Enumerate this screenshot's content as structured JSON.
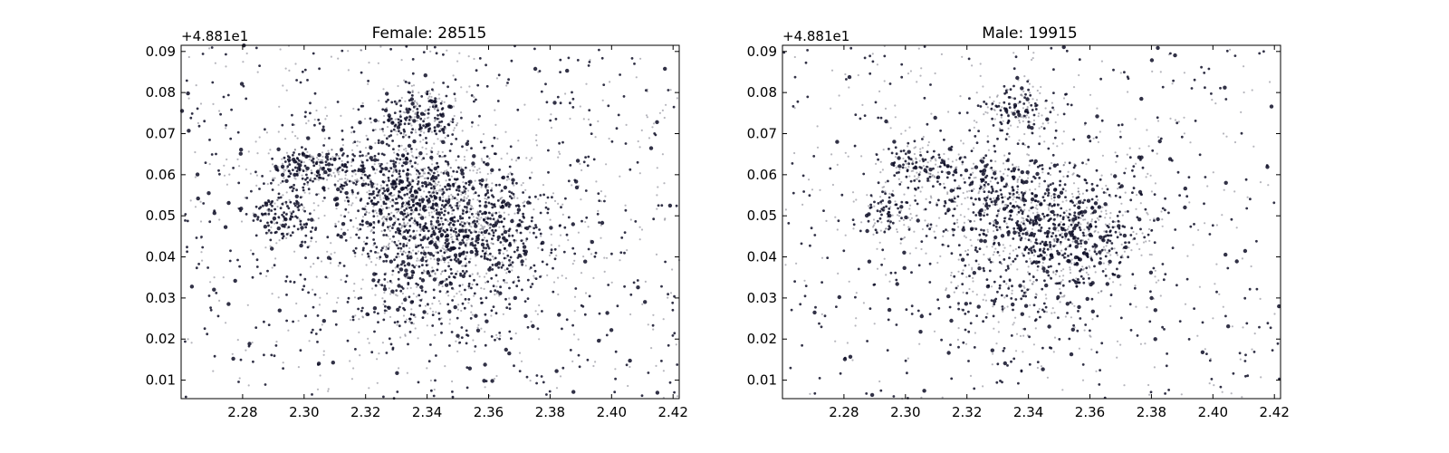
{
  "chart_data": [
    {
      "type": "scatter",
      "title": "Female: 28515",
      "y_offset_label": "+4.881e1",
      "xlim": [
        2.26,
        2.422
      ],
      "ylim": [
        0.0055,
        0.0915
      ],
      "xticks": [
        "2.28",
        "2.30",
        "2.32",
        "2.34",
        "2.36",
        "2.38",
        "2.40",
        "2.42"
      ],
      "yticks": [
        "0.01",
        "0.02",
        "0.03",
        "0.04",
        "0.05",
        "0.06",
        "0.07",
        "0.08",
        "0.09"
      ],
      "count": 28515,
      "point_color": "#0d0d26",
      "clusters": [
        {
          "x": 2.33,
          "y": 0.057,
          "sx": 0.012,
          "sy": 0.006,
          "w": 0.16
        },
        {
          "x": 2.345,
          "y": 0.05,
          "sx": 0.014,
          "sy": 0.008,
          "w": 0.18
        },
        {
          "x": 2.338,
          "y": 0.075,
          "sx": 0.007,
          "sy": 0.004,
          "w": 0.06
        },
        {
          "x": 2.302,
          "y": 0.061,
          "sx": 0.007,
          "sy": 0.003,
          "w": 0.06
        },
        {
          "x": 2.293,
          "y": 0.05,
          "sx": 0.005,
          "sy": 0.003,
          "w": 0.04
        },
        {
          "x": 2.36,
          "y": 0.046,
          "sx": 0.01,
          "sy": 0.006,
          "w": 0.08
        },
        {
          "x": 2.34,
          "y": 0.035,
          "sx": 0.015,
          "sy": 0.01,
          "w": 0.1
        },
        {
          "x": 2.34,
          "y": 0.048,
          "sx": 0.04,
          "sy": 0.02,
          "w": 0.18
        }
      ]
    },
    {
      "type": "scatter",
      "title": "Male: 19915",
      "y_offset_label": "+4.881e1",
      "xlim": [
        2.26,
        2.422
      ],
      "ylim": [
        0.0055,
        0.0915
      ],
      "xticks": [
        "2.28",
        "2.30",
        "2.32",
        "2.34",
        "2.36",
        "2.38",
        "2.40",
        "2.42"
      ],
      "yticks": [
        "0.01",
        "0.02",
        "0.03",
        "0.04",
        "0.05",
        "0.06",
        "0.07",
        "0.08",
        "0.09"
      ],
      "count": 19915,
      "point_color": "#0d0d26",
      "clusters": [
        {
          "x": 2.33,
          "y": 0.055,
          "sx": 0.012,
          "sy": 0.006,
          "w": 0.14
        },
        {
          "x": 2.348,
          "y": 0.048,
          "sx": 0.013,
          "sy": 0.007,
          "w": 0.16
        },
        {
          "x": 2.336,
          "y": 0.076,
          "sx": 0.006,
          "sy": 0.003,
          "w": 0.06
        },
        {
          "x": 2.303,
          "y": 0.062,
          "sx": 0.007,
          "sy": 0.003,
          "w": 0.06
        },
        {
          "x": 2.294,
          "y": 0.05,
          "sx": 0.005,
          "sy": 0.003,
          "w": 0.04
        },
        {
          "x": 2.36,
          "y": 0.045,
          "sx": 0.01,
          "sy": 0.006,
          "w": 0.08
        },
        {
          "x": 2.34,
          "y": 0.033,
          "sx": 0.015,
          "sy": 0.01,
          "w": 0.1
        },
        {
          "x": 2.34,
          "y": 0.048,
          "sx": 0.04,
          "sy": 0.02,
          "w": 0.2
        }
      ]
    }
  ]
}
